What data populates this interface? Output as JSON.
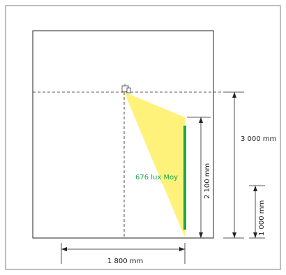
{
  "diagram": {
    "lux_label": "676 lux Moy",
    "dims": {
      "room_height": "3 000 mm",
      "target_height": "2 100 mm",
      "mount_height": "1 000 mm",
      "horizontal_distance": "1 800 mm"
    },
    "colors": {
      "beam": "#fff27a",
      "target": "#1aa84a",
      "lux_text": "#1aa84a",
      "lines": "#222222",
      "frame": "#a8a8a8"
    },
    "icons": {
      "luminaire": "luminaire-icon"
    }
  }
}
